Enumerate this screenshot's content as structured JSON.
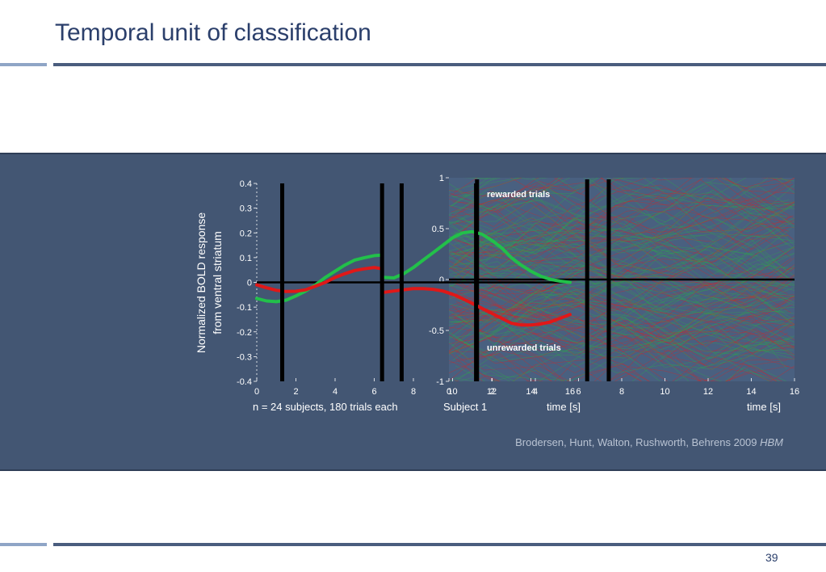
{
  "slide": {
    "title": "Temporal unit of classification",
    "page_number": "39",
    "caption_left": "n = 24 subjects, 180 trials each",
    "caption_mid": "Subject 1",
    "citation_text": "Brodersen, Hunt, Walton, Rushworth, Behrens 2009 ",
    "citation_journal": "HBM"
  },
  "colors": {
    "title": "#2b3f6b",
    "band": "#435673",
    "rewarded": "#22c04a",
    "unrewarded": "#e01818",
    "marker": "#000000",
    "citation": "#b9c3d3"
  },
  "chart_data": [
    {
      "type": "line",
      "ylabel_line1": "Normalized BOLD response",
      "ylabel_line2": "from ventral striatum",
      "xlabel": "time [s]",
      "xlim": [
        0,
        16
      ],
      "ylim": [
        -0.4,
        0.4
      ],
      "x_ticks": [
        0,
        2,
        4,
        6,
        8,
        10,
        12,
        14,
        16
      ],
      "y_ticks": [
        0.4,
        0.3,
        0.2,
        0.1,
        0,
        -0.1,
        -0.2,
        -0.3,
        -0.4
      ],
      "event_markers_x": [
        1.3,
        6.4,
        7.4,
        11.2
      ],
      "series": [
        {
          "color": "#22c04a",
          "segments": [
            {
              "x": [
                0,
                0.5,
                1,
                1.5,
                2,
                2.5,
                3,
                3.5,
                4,
                4.5,
                5,
                5.5,
                6,
                6.4
              ],
              "y": [
                -0.065,
                -0.075,
                -0.078,
                -0.072,
                -0.055,
                -0.035,
                -0.01,
                0.02,
                0.045,
                0.07,
                0.09,
                0.1,
                0.108,
                0.11
              ]
            },
            {
              "x": [
                6.5,
                7,
                7.5,
                8,
                8.5,
                9,
                9.5,
                10,
                10.5,
                11,
                11.5,
                12,
                12.5,
                13,
                13.5,
                14,
                14.5,
                15,
                15.5,
                16
              ],
              "y": [
                0.02,
                0.018,
                0.035,
                0.06,
                0.09,
                0.12,
                0.15,
                0.18,
                0.2,
                0.205,
                0.195,
                0.17,
                0.14,
                0.1,
                0.07,
                0.045,
                0.025,
                0.012,
                0.005,
                0.0
              ]
            }
          ]
        },
        {
          "color": "#e01818",
          "segments": [
            {
              "x": [
                0,
                0.5,
                1,
                1.5,
                2,
                2.5,
                3,
                3.5,
                4,
                4.5,
                5,
                5.5,
                6,
                6.4
              ],
              "y": [
                -0.01,
                -0.022,
                -0.032,
                -0.037,
                -0.036,
                -0.03,
                -0.015,
                0.0,
                0.02,
                0.035,
                0.048,
                0.055,
                0.06,
                0.055
              ]
            },
            {
              "x": [
                6.5,
                7,
                7.5,
                8,
                8.5,
                9,
                9.5,
                10,
                10.5,
                11,
                11.5,
                12,
                12.5,
                13,
                13.5,
                14,
                14.5,
                15,
                15.5,
                16
              ],
              "y": [
                -0.04,
                -0.035,
                -0.03,
                -0.025,
                -0.025,
                -0.028,
                -0.035,
                -0.048,
                -0.065,
                -0.085,
                -0.105,
                -0.125,
                -0.145,
                -0.165,
                -0.172,
                -0.172,
                -0.168,
                -0.16,
                -0.145,
                -0.13
              ]
            }
          ]
        }
      ]
    },
    {
      "type": "line",
      "subtitle": "Subject 1",
      "xlabel": "time [s]",
      "xlim": [
        0,
        16
      ],
      "ylim": [
        -1,
        1
      ],
      "x_ticks": [
        0,
        2,
        4,
        6,
        8,
        10,
        12,
        14,
        16
      ],
      "y_ticks": [
        1,
        0.5,
        0,
        -0.5,
        -1
      ],
      "annotations": [
        "rewarded trials",
        "unrewarded trials"
      ],
      "event_markers_x": [
        1.3,
        6.4,
        7.4
      ]
    }
  ]
}
